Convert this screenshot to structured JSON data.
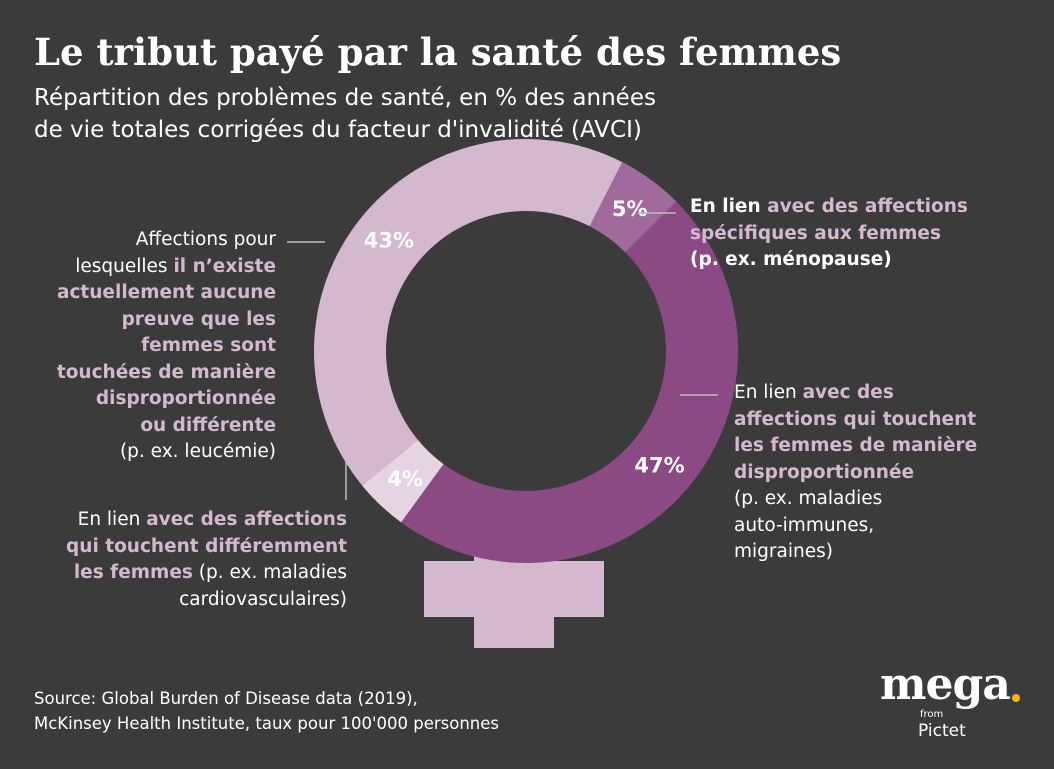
{
  "header": {
    "title": "Le tribut payé par la santé des femmes",
    "subtitle_line1": "Répartition des problèmes de santé, en % des années",
    "subtitle_line2": "de vie totales corrigées du facteur d'invalidité (AVCI)"
  },
  "chart_data": {
    "type": "pie",
    "title": "Le tribut payé par la santé des femmes",
    "subtitle": "Répartition des problèmes de santé, en % des années de vie totales corrigées du facteur d'invalidité (AVCI)",
    "unit": "%",
    "slices": [
      {
        "value": 5,
        "label": "5%",
        "color": "#a06a9c"
      },
      {
        "value": 47,
        "label": "47%",
        "color": "#8b4a84"
      },
      {
        "value": 4,
        "label": "4%",
        "color": "#e6d4e3"
      },
      {
        "value": 43,
        "label": "43%",
        "color": "#d3b8d0"
      }
    ]
  },
  "annotations": {
    "specific": {
      "l1_a": "En lien ",
      "l1_b": "avec des affections",
      "l2": "spécifiques aux femmes",
      "l3": "(p. ex. ménopause)"
    },
    "disproportionate": {
      "l1_a": "En lien ",
      "l1_b": "avec des",
      "l2": "affections qui touchent",
      "l3": "les femmes de manière",
      "l4": "disproportionnée",
      "l5": "(p. ex. maladies",
      "l6": "auto-immunes,",
      "l7": "migraines)"
    },
    "differently": {
      "l1_a": "En lien ",
      "l1_b": "avec des affections",
      "l2": "qui touchent différemment",
      "l3_a": "les femmes",
      "l3_b": " (p. ex. maladies",
      "l4": "cardiovasculaires)"
    },
    "no_evidence": {
      "l1": "Affections pour",
      "l2_a": "lesquelles ",
      "l2_b": "il n’existe",
      "l3": "actuellement aucune",
      "l4": "preuve que les",
      "l5": "femmes sont",
      "l6": "touchées de manière",
      "l7": "disproportionnée",
      "l8": "ou différente",
      "l9": "(p. ex. leucémie)"
    }
  },
  "source": {
    "line1": "Source: Global Burden of Disease data (2019),",
    "line2": "McKinsey Health Institute, taux pour 100'000 personnes"
  },
  "logo": {
    "word": "mega",
    "from": "from",
    "brand": "Pictet",
    "dot_color": "#f4b41a"
  },
  "colors": {
    "background": "#3b3b3b",
    "highlight": "#d3b8d0",
    "cross": "#d3b8d0"
  }
}
